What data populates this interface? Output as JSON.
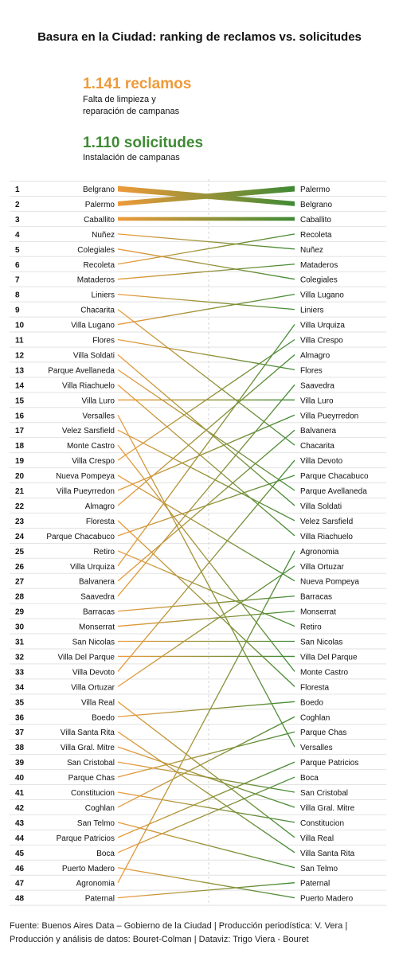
{
  "title": "Basura en la Ciudad: ranking de reclamos vs. solicitudes",
  "legend": {
    "reclamos_value": "1.141 reclamos",
    "reclamos_desc_1": "Falta de limpieza y",
    "reclamos_desc_2": "reparación de campanas",
    "solicitudes_value": "1.110 solicitudes",
    "solicitudes_desc": "Instalación de campanas"
  },
  "colors": {
    "orange": "#ee9a3a",
    "green": "#3f8a35",
    "light_orange": "#e8a85a"
  },
  "chart_data": {
    "type": "slope",
    "left_label": "reclamos",
    "right_label": "solicitudes",
    "ranks": [
      1,
      2,
      3,
      4,
      5,
      6,
      7,
      8,
      9,
      10,
      11,
      12,
      13,
      14,
      15,
      16,
      17,
      18,
      19,
      20,
      21,
      22,
      23,
      24,
      25,
      26,
      27,
      28,
      29,
      30,
      31,
      32,
      33,
      34,
      35,
      36,
      37,
      38,
      39,
      40,
      41,
      42,
      43,
      44,
      45,
      46,
      47,
      48
    ],
    "left": [
      "Belgrano",
      "Palermo",
      "Caballito",
      "Nuñez",
      "Colegiales",
      "Recoleta",
      "Mataderos",
      "Liniers",
      "Chacarita",
      "Villa Lugano",
      "Flores",
      "Villa Soldati",
      "Parque Avellaneda",
      "Villa Riachuelo",
      "Villa Luro",
      "Versalles",
      "Velez Sarsfield",
      "Monte Castro",
      "Villa Crespo",
      "Nueva Pompeya",
      "Villa Pueyrredon",
      "Almagro",
      "Floresta",
      "Parque Chacabuco",
      "Retiro",
      "Villa Urquiza",
      "Balvanera",
      "Saavedra",
      "Barracas",
      "Monserrat",
      "San Nicolas",
      "Villa Del Parque",
      "Villa Devoto",
      "Villa Ortuzar",
      "Villa Real",
      "Boedo",
      "Villa Santa Rita",
      "Villa Gral. Mitre",
      "San Cristobal",
      "Parque Chas",
      "Constitucion",
      "Coghlan",
      "San Telmo",
      "Parque Patricios",
      "Boca",
      "Puerto Madero",
      "Agronomia",
      "Paternal"
    ],
    "right": [
      "Palermo",
      "Belgrano",
      "Caballito",
      "Recoleta",
      "Nuñez",
      "Mataderos",
      "Colegiales",
      "Villa Lugano",
      "Liniers",
      "Villa Urquiza",
      "Villa Crespo",
      "Almagro",
      "Flores",
      "Saavedra",
      "Villa Luro",
      "Villa Pueyrredon",
      "Balvanera",
      "Chacarita",
      "Villa Devoto",
      "Parque Chacabuco",
      "Parque Avellaneda",
      "Villa Soldati",
      "Velez Sarsfield",
      "Villa Riachuelo",
      "Agronomia",
      "Villa Ortuzar",
      "Nueva Pompeya",
      "Barracas",
      "Monserrat",
      "Retiro",
      "San Nicolas",
      "Villa Del Parque",
      "Monte Castro",
      "Floresta",
      "Boedo",
      "Coghlan",
      "Parque Chas",
      "Versalles",
      "Parque Patricios",
      "Boca",
      "San Cristobal",
      "Villa Gral. Mitre",
      "Constitucion",
      "Villa Real",
      "Villa Santa Rita",
      "San Telmo",
      "Paternal",
      "Puerto Madero"
    ]
  },
  "footer": {
    "line1": "Fuente: Buenos Aires Data – Gobierno de la Ciudad | Producción periodística: V. Vera |",
    "line2": "Producción y análisis de datos: Bouret-Colman | Dataviz: Trigo Viera - Bouret"
  }
}
